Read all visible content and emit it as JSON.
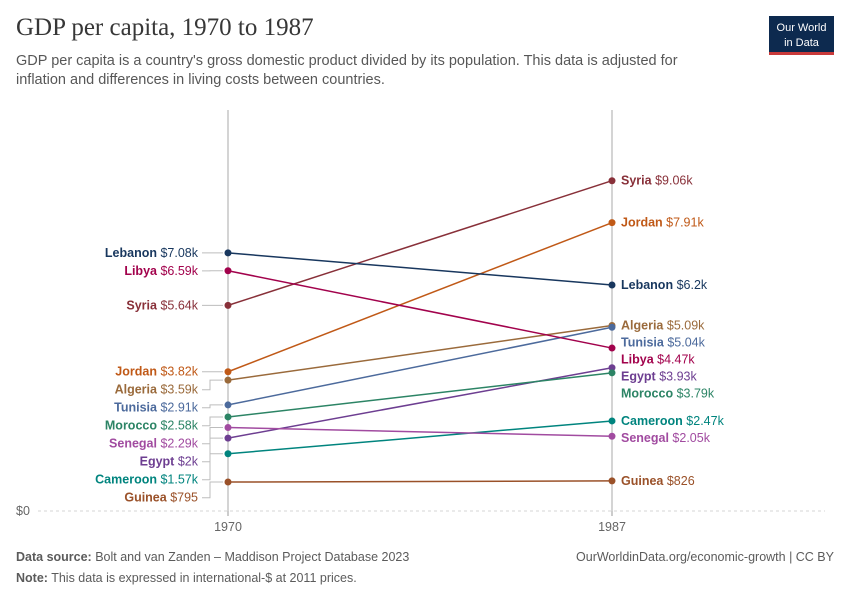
{
  "header": {
    "title": "GDP per capita, 1970 to 1987",
    "subtitle": "GDP per capita is a country's gross domestic product divided by its population. This data is adjusted for inflation and differences in living costs between countries.",
    "logo_line1": "Our World",
    "logo_line2": "in Data"
  },
  "footer": {
    "source_label": "Data source:",
    "source_text": "Bolt and van Zanden – Maddison Project Database 2023",
    "note_label": "Note:",
    "note_text": "This data is expressed in international-$ at 2011 prices.",
    "credit": "OurWorldinData.org/economic-growth | CC BY"
  },
  "chart_data": {
    "type": "line",
    "chart_style": "slope",
    "x": [
      "1970",
      "1987"
    ],
    "y_tick_label": "$0",
    "ylim": [
      0,
      10000
    ],
    "series": [
      {
        "name": "Syria",
        "color": "#883039",
        "values": [
          5640,
          9060
        ],
        "start_label": "$5.64k",
        "end_label": "$9.06k"
      },
      {
        "name": "Jordan",
        "color": "#c05917",
        "values": [
          3820,
          7910
        ],
        "start_label": "$3.82k",
        "end_label": "$7.91k"
      },
      {
        "name": "Lebanon",
        "color": "#18375e",
        "values": [
          7080,
          6200
        ],
        "start_label": "$7.08k",
        "end_label": "$6.2k"
      },
      {
        "name": "Algeria",
        "color": "#9a6a3b",
        "values": [
          3590,
          5090
        ],
        "start_label": "$3.59k",
        "end_label": "$5.09k"
      },
      {
        "name": "Tunisia",
        "color": "#4c6a9c",
        "values": [
          2910,
          5040
        ],
        "start_label": "$2.91k",
        "end_label": "$5.04k"
      },
      {
        "name": "Libya",
        "color": "#a2024c",
        "values": [
          6590,
          4470
        ],
        "start_label": "$6.59k",
        "end_label": "$4.47k"
      },
      {
        "name": "Egypt",
        "color": "#6d3e91",
        "values": [
          2000,
          3930
        ],
        "start_label": "$2k",
        "end_label": "$3.93k"
      },
      {
        "name": "Morocco",
        "color": "#2c8465",
        "values": [
          2580,
          3790
        ],
        "start_label": "$2.58k",
        "end_label": "$3.79k"
      },
      {
        "name": "Cameroon",
        "color": "#00847e",
        "values": [
          1570,
          2470
        ],
        "start_label": "$1.57k",
        "end_label": "$2.47k"
      },
      {
        "name": "Senegal",
        "color": "#a14ba0",
        "values": [
          2290,
          2050
        ],
        "start_label": "$2.29k",
        "end_label": "$2.05k"
      },
      {
        "name": "Guinea",
        "color": "#9a5129",
        "values": [
          795,
          826
        ],
        "start_label": "$795",
        "end_label": "$826"
      }
    ]
  }
}
